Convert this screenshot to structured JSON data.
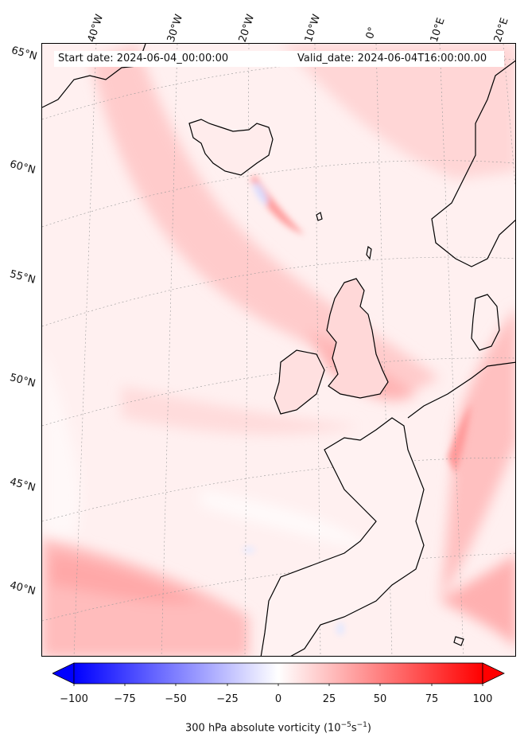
{
  "header": {
    "start_date": "Start date: 2024-06-04_00:00:00",
    "valid_date": "Valid_date: 2024-06-04T16:00:00.00"
  },
  "axes": {
    "lon_labels": [
      "40°W",
      "30°W",
      "20°W",
      "10°W",
      "0°",
      "10°E",
      "20°E"
    ],
    "lat_labels": [
      "65°N",
      "60°N",
      "55°N",
      "50°N",
      "45°N",
      "40°N"
    ]
  },
  "colorbar": {
    "label_prefix": "300 hPa absolute vorticity (10",
    "label_exp1": "−5",
    "label_mid": "s",
    "label_exp2": "−1",
    "label_suffix": ")",
    "tick_labels": [
      "−100",
      "−75",
      "−50",
      "−25",
      "0",
      "25",
      "50",
      "75",
      "100"
    ],
    "min": -100,
    "max": 100,
    "neg_color": "#0000ff",
    "zero_color": "#ffffff",
    "pos_color": "#ff0000"
  },
  "colors": {
    "coastline": "#000000",
    "ocean_background": "#fff5f5",
    "gridline": "#999999"
  }
}
